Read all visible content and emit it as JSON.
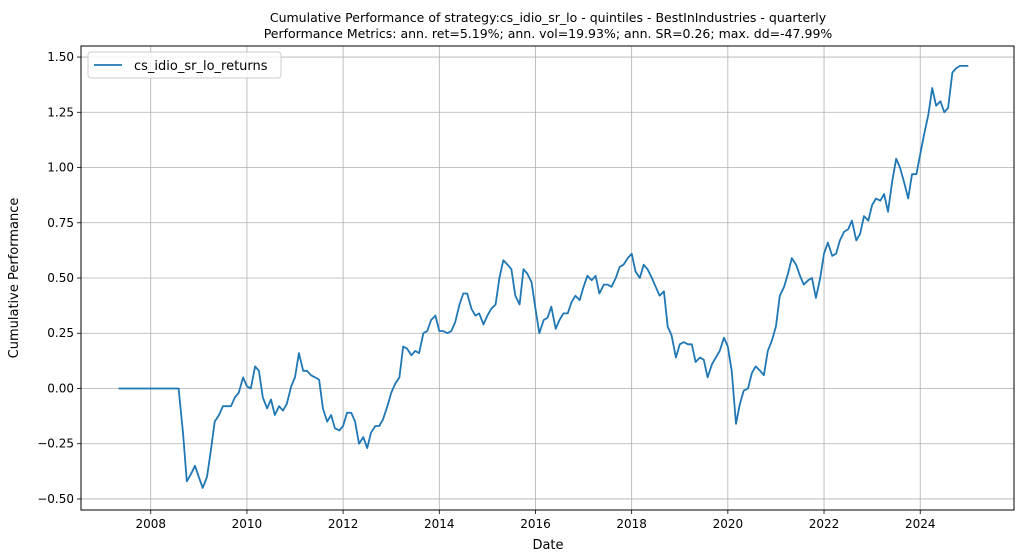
{
  "chart_data": {
    "type": "line",
    "title": "Cumulative Performance of strategy:cs_idio_sr_lo - quintiles - BestInIndustries - quarterly",
    "subtitle": "Performance Metrics: ann. ret=5.19%; ann. vol=19.93%; ann. SR=0.26; max. dd=-47.99%",
    "xlabel": "Date",
    "ylabel": "Cumulative Performance",
    "xlim": [
      2006.55,
      2025.95
    ],
    "ylim": [
      -0.55,
      1.55
    ],
    "xticks": [
      2008,
      2010,
      2012,
      2014,
      2016,
      2018,
      2020,
      2022,
      2024
    ],
    "yticks": [
      -0.5,
      -0.25,
      0.0,
      0.25,
      0.5,
      0.75,
      1.0,
      1.25,
      1.5
    ],
    "xtick_labels": [
      "2008",
      "2010",
      "2012",
      "2014",
      "2016",
      "2018",
      "2020",
      "2022",
      "2024"
    ],
    "ytick_labels": [
      "−0.50",
      "−0.25",
      "0.00",
      "0.25",
      "0.50",
      "0.75",
      "1.00",
      "1.25",
      "1.50"
    ],
    "grid": true,
    "legend_position": "top-left",
    "color": "#1f77b4",
    "series": [
      {
        "name": "cs_idio_sr_lo_returns",
        "x": [
          2007.33,
          2007.75,
          2008.0,
          2008.25,
          2008.5,
          2008.58,
          2008.67,
          2008.75,
          2008.83,
          2008.92,
          2009.0,
          2009.08,
          2009.17,
          2009.25,
          2009.33,
          2009.42,
          2009.5,
          2009.58,
          2009.67,
          2009.75,
          2009.83,
          2009.92,
          2010.0,
          2010.08,
          2010.17,
          2010.25,
          2010.33,
          2010.42,
          2010.5,
          2010.58,
          2010.67,
          2010.75,
          2010.83,
          2010.92,
          2011.0,
          2011.08,
          2011.17,
          2011.25,
          2011.33,
          2011.42,
          2011.5,
          2011.58,
          2011.67,
          2011.75,
          2011.83,
          2011.92,
          2012.0,
          2012.08,
          2012.17,
          2012.25,
          2012.33,
          2012.42,
          2012.5,
          2012.58,
          2012.67,
          2012.75,
          2012.83,
          2012.92,
          2013.0,
          2013.08,
          2013.17,
          2013.25,
          2013.33,
          2013.42,
          2013.5,
          2013.58,
          2013.67,
          2013.75,
          2013.83,
          2013.92,
          2014.0,
          2014.08,
          2014.17,
          2014.25,
          2014.33,
          2014.42,
          2014.5,
          2014.58,
          2014.67,
          2014.75,
          2014.83,
          2014.92,
          2015.0,
          2015.08,
          2015.17,
          2015.25,
          2015.33,
          2015.42,
          2015.5,
          2015.58,
          2015.67,
          2015.75,
          2015.83,
          2015.92,
          2016.0,
          2016.08,
          2016.17,
          2016.25,
          2016.33,
          2016.42,
          2016.5,
          2016.58,
          2016.67,
          2016.75,
          2016.83,
          2016.92,
          2017.0,
          2017.08,
          2017.17,
          2017.25,
          2017.33,
          2017.42,
          2017.5,
          2017.58,
          2017.67,
          2017.75,
          2017.83,
          2017.92,
          2018.0,
          2018.08,
          2018.17,
          2018.25,
          2018.33,
          2018.42,
          2018.5,
          2018.58,
          2018.67,
          2018.75,
          2018.83,
          2018.92,
          2019.0,
          2019.08,
          2019.17,
          2019.25,
          2019.33,
          2019.42,
          2019.5,
          2019.58,
          2019.67,
          2019.75,
          2019.83,
          2019.92,
          2020.0,
          2020.08,
          2020.17,
          2020.25,
          2020.33,
          2020.42,
          2020.5,
          2020.58,
          2020.67,
          2020.75,
          2020.83,
          2020.92,
          2021.0,
          2021.08,
          2021.17,
          2021.25,
          2021.33,
          2021.42,
          2021.5,
          2021.58,
          2021.67,
          2021.75,
          2021.83,
          2021.92,
          2022.0,
          2022.08,
          2022.17,
          2022.25,
          2022.33,
          2022.42,
          2022.5,
          2022.58,
          2022.67,
          2022.75,
          2022.83,
          2022.92,
          2023.0,
          2023.08,
          2023.17,
          2023.25,
          2023.33,
          2023.42,
          2023.5,
          2023.58,
          2023.67,
          2023.75,
          2023.83,
          2023.92,
          2024.0,
          2024.08,
          2024.17,
          2024.25,
          2024.33,
          2024.42,
          2024.5,
          2024.58,
          2024.67,
          2024.75,
          2024.83,
          2024.92,
          2025.0
        ],
        "y": [
          0.0,
          0.0,
          0.0,
          0.0,
          0.0,
          0.0,
          -0.2,
          -0.42,
          -0.39,
          -0.35,
          -0.4,
          -0.45,
          -0.4,
          -0.28,
          -0.15,
          -0.12,
          -0.08,
          -0.08,
          -0.08,
          -0.04,
          -0.02,
          0.05,
          0.01,
          0.0,
          0.1,
          0.08,
          -0.04,
          -0.09,
          -0.05,
          -0.12,
          -0.08,
          -0.1,
          -0.07,
          0.01,
          0.05,
          0.16,
          0.08,
          0.08,
          0.06,
          0.05,
          0.04,
          -0.09,
          -0.15,
          -0.12,
          -0.18,
          -0.19,
          -0.17,
          -0.11,
          -0.11,
          -0.15,
          -0.25,
          -0.22,
          -0.27,
          -0.2,
          -0.17,
          -0.17,
          -0.14,
          -0.08,
          -0.02,
          0.02,
          0.05,
          0.19,
          0.18,
          0.15,
          0.17,
          0.16,
          0.25,
          0.26,
          0.31,
          0.33,
          0.26,
          0.26,
          0.25,
          0.26,
          0.3,
          0.38,
          0.43,
          0.43,
          0.36,
          0.33,
          0.34,
          0.29,
          0.33,
          0.36,
          0.38,
          0.5,
          0.58,
          0.56,
          0.54,
          0.42,
          0.38,
          0.54,
          0.52,
          0.48,
          0.36,
          0.25,
          0.31,
          0.32,
          0.37,
          0.27,
          0.31,
          0.34,
          0.34,
          0.39,
          0.42,
          0.4,
          0.46,
          0.51,
          0.49,
          0.51,
          0.43,
          0.47,
          0.47,
          0.46,
          0.5,
          0.55,
          0.56,
          0.59,
          0.61,
          0.53,
          0.5,
          0.56,
          0.54,
          0.5,
          0.46,
          0.42,
          0.44,
          0.28,
          0.24,
          0.14,
          0.2,
          0.21,
          0.2,
          0.2,
          0.12,
          0.14,
          0.13,
          0.05,
          0.11,
          0.14,
          0.17,
          0.23,
          0.19,
          0.08,
          -0.16,
          -0.07,
          -0.01,
          0.0,
          0.07,
          0.1,
          0.08,
          0.06,
          0.17,
          0.22,
          0.28,
          0.42,
          0.46,
          0.52,
          0.59,
          0.56,
          0.51,
          0.47,
          0.49,
          0.5,
          0.41,
          0.5,
          0.61,
          0.66,
          0.6,
          0.61,
          0.67,
          0.71,
          0.72,
          0.76,
          0.67,
          0.7,
          0.78,
          0.76,
          0.83,
          0.86,
          0.85,
          0.88,
          0.8,
          0.94,
          1.04,
          1.0,
          0.93,
          0.86,
          0.97,
          0.97,
          1.06,
          1.15,
          1.24,
          1.36,
          1.28,
          1.3,
          1.25,
          1.27,
          1.43,
          1.45,
          1.46,
          1.46,
          1.46
        ]
      }
    ]
  }
}
